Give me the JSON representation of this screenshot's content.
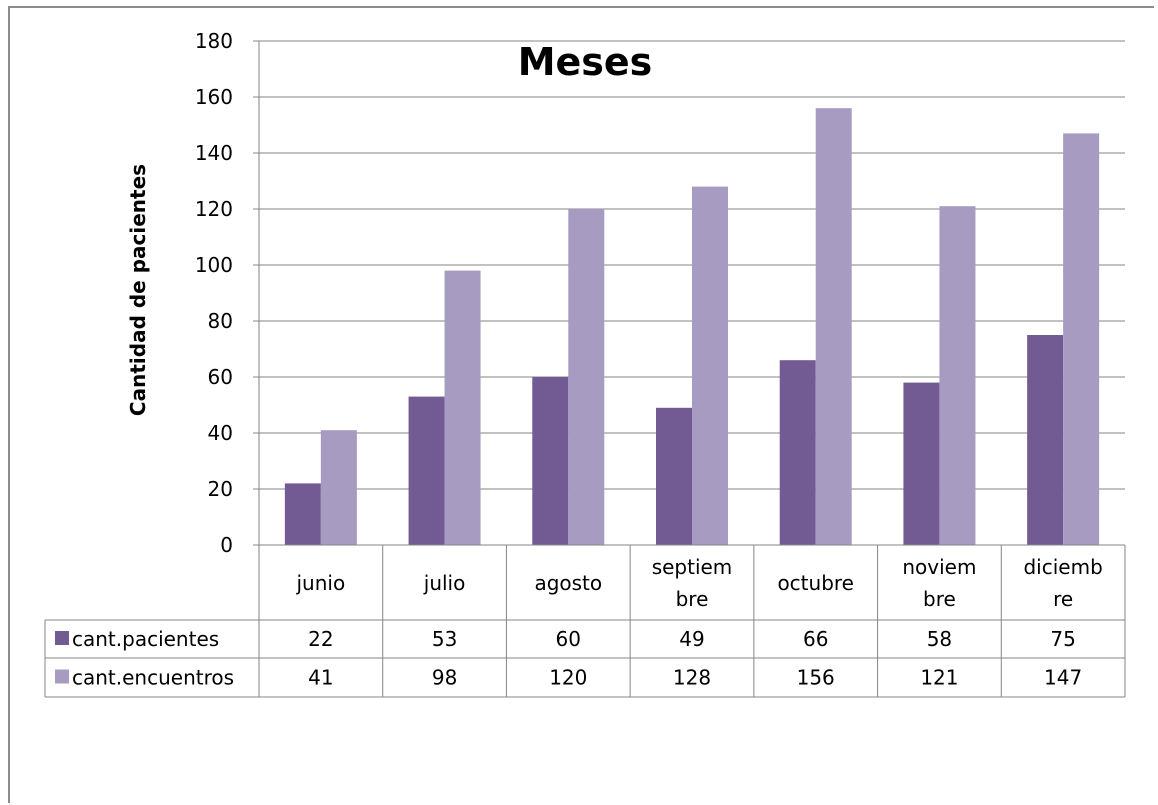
{
  "chart_data": {
    "type": "bar",
    "title": "Meses",
    "xlabel": "",
    "ylabel": "Cantidad de pacientes",
    "ylim": [
      0,
      180
    ],
    "yticks": [
      0,
      20,
      40,
      60,
      80,
      100,
      120,
      140,
      160,
      180
    ],
    "grid": true,
    "legend": "data-table",
    "categories": [
      [
        "junio"
      ],
      [
        "julio"
      ],
      [
        "agosto"
      ],
      [
        "septiem",
        "bre"
      ],
      [
        "octubre"
      ],
      [
        "noviem",
        "bre"
      ],
      [
        "diciemb",
        "re"
      ]
    ],
    "series": [
      {
        "name": "cant.pacientes",
        "color": "#725a92",
        "values": [
          22,
          53,
          60,
          49,
          66,
          58,
          75
        ]
      },
      {
        "name": "cant.encuentros",
        "color": "#a79bc2",
        "values": [
          41,
          98,
          120,
          128,
          156,
          121,
          147
        ]
      }
    ]
  }
}
